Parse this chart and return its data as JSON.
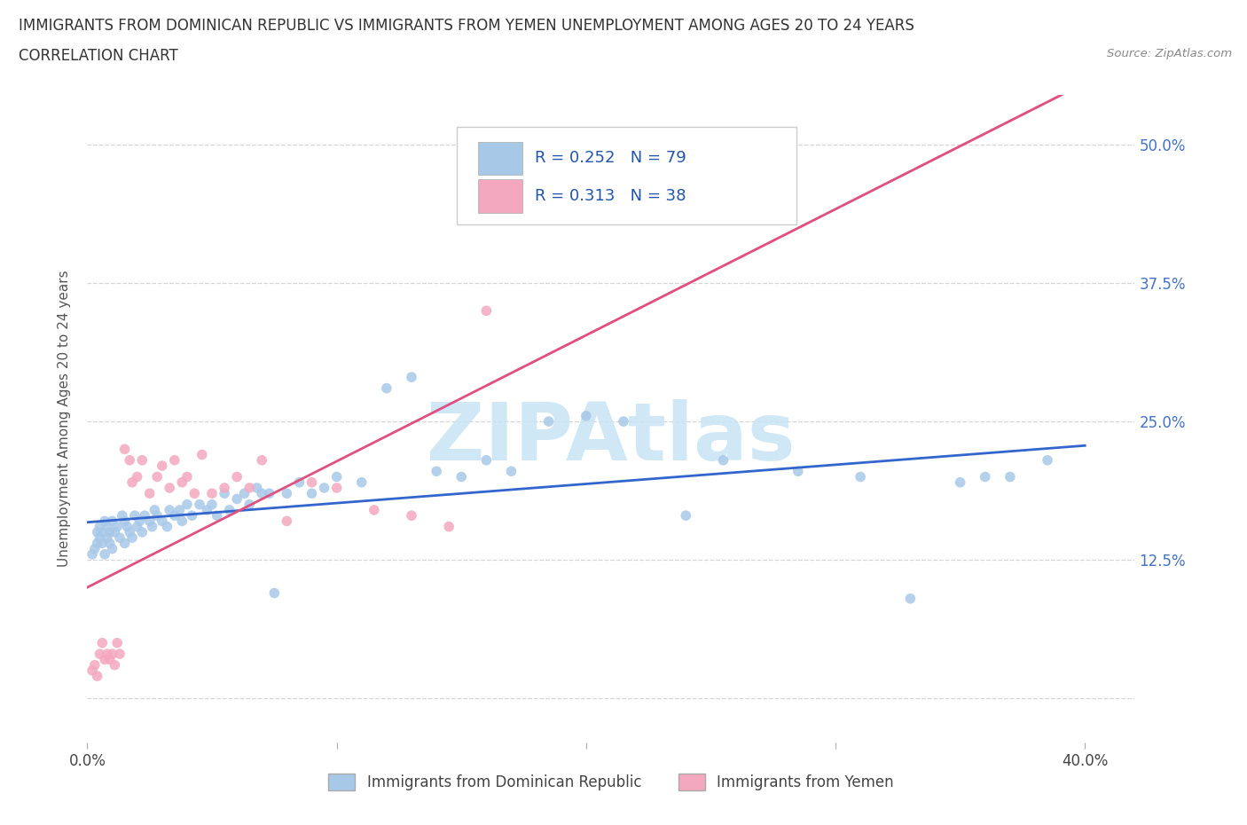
{
  "title_line1": "IMMIGRANTS FROM DOMINICAN REPUBLIC VS IMMIGRANTS FROM YEMEN UNEMPLOYMENT AMONG AGES 20 TO 24 YEARS",
  "title_line2": "CORRELATION CHART",
  "source_text": "Source: ZipAtlas.com",
  "ylabel": "Unemployment Among Ages 20 to 24 years",
  "xlim": [
    0.0,
    0.42
  ],
  "ylim": [
    -0.04,
    0.545
  ],
  "xtick_positions": [
    0.0,
    0.1,
    0.2,
    0.3,
    0.4
  ],
  "xticklabels": [
    "0.0%",
    "",
    "",
    "",
    "40.0%"
  ],
  "ytick_positions": [
    0.0,
    0.125,
    0.25,
    0.375,
    0.5
  ],
  "ytick_labels": [
    "",
    "12.5%",
    "25.0%",
    "37.5%",
    "50.0%"
  ],
  "grid_color": "#cccccc",
  "background_color": "#ffffff",
  "watermark_text": "ZIPAtlas",
  "watermark_color": "#c8e4f4",
  "series1_color": "#a8c8e8",
  "series2_color": "#f4a8c0",
  "trendline1_color": "#3366cc",
  "trendline2_color": "#e05080",
  "series1_label": "Immigrants from Dominican Republic",
  "series2_label": "Immigrants from Yemen",
  "series1_R": 0.252,
  "series2_R": 0.313,
  "series1_N": 79,
  "series2_N": 38,
  "scatter1_x": [
    0.002,
    0.003,
    0.004,
    0.004,
    0.005,
    0.005,
    0.006,
    0.006,
    0.007,
    0.007,
    0.008,
    0.008,
    0.009,
    0.009,
    0.01,
    0.01,
    0.011,
    0.012,
    0.013,
    0.014,
    0.015,
    0.015,
    0.016,
    0.017,
    0.018,
    0.019,
    0.02,
    0.021,
    0.022,
    0.023,
    0.025,
    0.026,
    0.027,
    0.028,
    0.03,
    0.032,
    0.033,
    0.035,
    0.037,
    0.038,
    0.04,
    0.042,
    0.045,
    0.048,
    0.05,
    0.052,
    0.055,
    0.057,
    0.06,
    0.063,
    0.065,
    0.068,
    0.07,
    0.073,
    0.075,
    0.08,
    0.085,
    0.09,
    0.095,
    0.1,
    0.11,
    0.12,
    0.13,
    0.14,
    0.15,
    0.16,
    0.17,
    0.185,
    0.2,
    0.215,
    0.24,
    0.255,
    0.285,
    0.31,
    0.33,
    0.35,
    0.36,
    0.37,
    0.385
  ],
  "scatter1_y": [
    0.13,
    0.135,
    0.14,
    0.15,
    0.145,
    0.155,
    0.14,
    0.15,
    0.13,
    0.16,
    0.145,
    0.155,
    0.14,
    0.15,
    0.135,
    0.16,
    0.15,
    0.155,
    0.145,
    0.165,
    0.14,
    0.16,
    0.155,
    0.15,
    0.145,
    0.165,
    0.155,
    0.16,
    0.15,
    0.165,
    0.16,
    0.155,
    0.17,
    0.165,
    0.16,
    0.155,
    0.17,
    0.165,
    0.17,
    0.16,
    0.175,
    0.165,
    0.175,
    0.17,
    0.175,
    0.165,
    0.185,
    0.17,
    0.18,
    0.185,
    0.175,
    0.19,
    0.185,
    0.185,
    0.095,
    0.185,
    0.195,
    0.185,
    0.19,
    0.2,
    0.195,
    0.28,
    0.29,
    0.205,
    0.2,
    0.215,
    0.205,
    0.25,
    0.255,
    0.25,
    0.165,
    0.215,
    0.205,
    0.2,
    0.09,
    0.195,
    0.2,
    0.2,
    0.215
  ],
  "scatter2_x": [
    0.002,
    0.003,
    0.004,
    0.005,
    0.006,
    0.007,
    0.008,
    0.009,
    0.01,
    0.011,
    0.012,
    0.013,
    0.015,
    0.017,
    0.018,
    0.02,
    0.022,
    0.025,
    0.028,
    0.03,
    0.033,
    0.035,
    0.038,
    0.04,
    0.043,
    0.046,
    0.05,
    0.055,
    0.06,
    0.065,
    0.07,
    0.08,
    0.09,
    0.1,
    0.115,
    0.13,
    0.145,
    0.16
  ],
  "scatter2_y": [
    0.025,
    0.03,
    0.02,
    0.04,
    0.05,
    0.035,
    0.04,
    0.035,
    0.04,
    0.03,
    0.05,
    0.04,
    0.225,
    0.215,
    0.195,
    0.2,
    0.215,
    0.185,
    0.2,
    0.21,
    0.19,
    0.215,
    0.195,
    0.2,
    0.185,
    0.22,
    0.185,
    0.19,
    0.2,
    0.19,
    0.215,
    0.16,
    0.195,
    0.19,
    0.17,
    0.165,
    0.155,
    0.35
  ]
}
